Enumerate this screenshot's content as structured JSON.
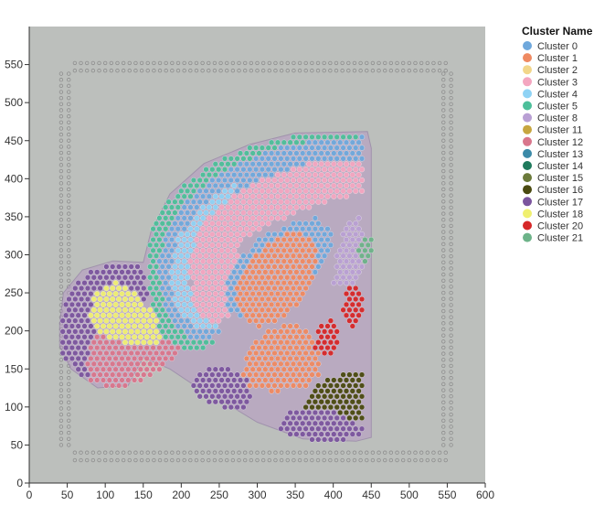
{
  "chart_data": {
    "type": "scatter",
    "title": "",
    "xlabel": "",
    "ylabel": "",
    "xlim": [
      0,
      600
    ],
    "ylim": [
      0,
      600
    ],
    "x_ticks": [
      0,
      50,
      100,
      150,
      200,
      250,
      300,
      350,
      400,
      450,
      500,
      550,
      600
    ],
    "y_ticks": [
      0,
      50,
      100,
      150,
      200,
      250,
      300,
      350,
      400,
      450,
      500,
      550
    ],
    "background_image": "tissue-section-histology",
    "grid": false,
    "legend": {
      "title": "Cluster Name",
      "placement": "top-right-outside",
      "entries": [
        {
          "name": "Cluster 0",
          "color": "#6fa8dc"
        },
        {
          "name": "Cluster 1",
          "color": "#ef8a62"
        },
        {
          "name": "Cluster 2",
          "color": "#f2d68a"
        },
        {
          "name": "Cluster 3",
          "color": "#f4a6c0"
        },
        {
          "name": "Cluster 4",
          "color": "#8fd3f5"
        },
        {
          "name": "Cluster 5",
          "color": "#4dbf9a"
        },
        {
          "name": "Cluster 8",
          "color": "#b9a0d4"
        },
        {
          "name": "Cluster 11",
          "color": "#c7a640"
        },
        {
          "name": "Cluster 12",
          "color": "#d9768c"
        },
        {
          "name": "Cluster 13",
          "color": "#3b8aa8"
        },
        {
          "name": "Cluster 14",
          "color": "#1f7a5c"
        },
        {
          "name": "Cluster 15",
          "color": "#6b7a3a"
        },
        {
          "name": "Cluster 16",
          "color": "#4a4a10"
        },
        {
          "name": "Cluster 17",
          "color": "#7b559e"
        },
        {
          "name": "Cluster 18",
          "color": "#f0f070"
        },
        {
          "name": "Cluster 20",
          "color": "#d62728"
        },
        {
          "name": "Cluster 21",
          "color": "#6db389"
        }
      ]
    },
    "regions": [
      {
        "cluster": "Cluster 17",
        "polygon": [
          [
            40,
            195
          ],
          [
            50,
            250
          ],
          [
            80,
            280
          ],
          [
            120,
            290
          ],
          [
            150,
            285
          ],
          [
            155,
            250
          ],
          [
            150,
            200
          ],
          [
            170,
            170
          ],
          [
            150,
            140
          ],
          [
            110,
            130
          ],
          [
            70,
            140
          ],
          [
            45,
            165
          ]
        ]
      },
      {
        "cluster": "Cluster 12",
        "polygon": [
          [
            75,
            150
          ],
          [
            80,
            190
          ],
          [
            110,
            200
          ],
          [
            150,
            210
          ],
          [
            190,
            200
          ],
          [
            200,
            175
          ],
          [
            175,
            150
          ],
          [
            140,
            130
          ],
          [
            105,
            125
          ],
          [
            80,
            135
          ]
        ]
      },
      {
        "cluster": "Cluster 18",
        "polygon": [
          [
            80,
            215
          ],
          [
            85,
            250
          ],
          [
            110,
            265
          ],
          [
            135,
            255
          ],
          [
            150,
            235
          ],
          [
            175,
            215
          ],
          [
            185,
            195
          ],
          [
            160,
            180
          ],
          [
            120,
            185
          ],
          [
            90,
            195
          ]
        ]
      },
      {
        "cluster": "Cluster 5",
        "polygon": [
          [
            155,
            300
          ],
          [
            165,
            350
          ],
          [
            200,
            390
          ],
          [
            250,
            425
          ],
          [
            300,
            445
          ],
          [
            345,
            455
          ],
          [
            380,
            458
          ],
          [
            420,
            462
          ],
          [
            440,
            460
          ],
          [
            440,
            440
          ],
          [
            405,
            440
          ],
          [
            370,
            430
          ],
          [
            320,
            415
          ],
          [
            270,
            390
          ],
          [
            225,
            355
          ],
          [
            195,
            315
          ],
          [
            185,
            265
          ],
          [
            195,
            225
          ],
          [
            215,
            200
          ],
          [
            245,
            190
          ],
          [
            230,
            170
          ],
          [
            200,
            175
          ],
          [
            175,
            195
          ],
          [
            160,
            235
          ],
          [
            155,
            270
          ]
        ]
      },
      {
        "cluster": "Cluster 0",
        "polygon": [
          [
            170,
            290
          ],
          [
            180,
            330
          ],
          [
            200,
            365
          ],
          [
            235,
            395
          ],
          [
            275,
            420
          ],
          [
            320,
            438
          ],
          [
            370,
            450
          ],
          [
            440,
            455
          ],
          [
            440,
            420
          ],
          [
            395,
            420
          ],
          [
            350,
            415
          ],
          [
            300,
            395
          ],
          [
            255,
            365
          ],
          [
            220,
            330
          ],
          [
            205,
            290
          ],
          [
            205,
            250
          ],
          [
            220,
            215
          ],
          [
            250,
            200
          ],
          [
            240,
            185
          ],
          [
            210,
            190
          ],
          [
            185,
            215
          ],
          [
            172,
            255
          ]
        ]
      },
      {
        "cluster": "Cluster 4",
        "polygon": [
          [
            185,
            280
          ],
          [
            195,
            320
          ],
          [
            215,
            350
          ],
          [
            245,
            380
          ],
          [
            275,
            395
          ],
          [
            265,
            365
          ],
          [
            235,
            335
          ],
          [
            215,
            300
          ],
          [
            210,
            260
          ],
          [
            225,
            225
          ],
          [
            250,
            205
          ],
          [
            225,
            200
          ],
          [
            200,
            220
          ],
          [
            188,
            250
          ]
        ]
      },
      {
        "cluster": "Cluster 3",
        "polygon": [
          [
            210,
            285
          ],
          [
            220,
            325
          ],
          [
            245,
            360
          ],
          [
            280,
            385
          ],
          [
            320,
            405
          ],
          [
            370,
            420
          ],
          [
            440,
            420
          ],
          [
            440,
            380
          ],
          [
            395,
            370
          ],
          [
            350,
            355
          ],
          [
            310,
            335
          ],
          [
            280,
            320
          ],
          [
            270,
            285
          ],
          [
            290,
            265
          ],
          [
            275,
            250
          ],
          [
            260,
            215
          ],
          [
            235,
            210
          ],
          [
            215,
            240
          ]
        ]
      },
      {
        "cluster": "Cluster 0",
        "polygon": [
          [
            255,
            250
          ],
          [
            270,
            285
          ],
          [
            300,
            320
          ],
          [
            340,
            340
          ],
          [
            375,
            350
          ],
          [
            400,
            330
          ],
          [
            395,
            300
          ],
          [
            380,
            270
          ],
          [
            350,
            240
          ],
          [
            320,
            220
          ],
          [
            290,
            215
          ],
          [
            265,
            225
          ]
        ]
      },
      {
        "cluster": "Cluster 1",
        "polygon": [
          [
            270,
            250
          ],
          [
            285,
            290
          ],
          [
            320,
            320
          ],
          [
            355,
            335
          ],
          [
            380,
            310
          ],
          [
            375,
            270
          ],
          [
            360,
            240
          ],
          [
            330,
            215
          ],
          [
            300,
            205
          ],
          [
            280,
            215
          ]
        ]
      },
      {
        "cluster": "Cluster 1",
        "polygon": [
          [
            280,
            130
          ],
          [
            285,
            170
          ],
          [
            310,
            200
          ],
          [
            345,
            210
          ],
          [
            370,
            200
          ],
          [
            385,
            170
          ],
          [
            380,
            140
          ],
          [
            360,
            125
          ],
          [
            325,
            120
          ],
          [
            300,
            122
          ]
        ]
      },
      {
        "cluster": "Cluster 8",
        "polygon": [
          [
            400,
            260
          ],
          [
            405,
            300
          ],
          [
            415,
            340
          ],
          [
            435,
            355
          ],
          [
            440,
            320
          ],
          [
            440,
            280
          ],
          [
            430,
            260
          ]
        ]
      },
      {
        "cluster": "Cluster 20",
        "polygon": [
          [
            410,
            220
          ],
          [
            415,
            250
          ],
          [
            430,
            265
          ],
          [
            440,
            250
          ],
          [
            440,
            215
          ],
          [
            425,
            205
          ]
        ]
      },
      {
        "cluster": "Cluster 20",
        "polygon": [
          [
            375,
            175
          ],
          [
            380,
            205
          ],
          [
            400,
            220
          ],
          [
            410,
            200
          ],
          [
            405,
            175
          ],
          [
            390,
            165
          ]
        ]
      },
      {
        "cluster": "Cluster 16",
        "polygon": [
          [
            355,
            80
          ],
          [
            365,
            110
          ],
          [
            385,
            135
          ],
          [
            420,
            145
          ],
          [
            440,
            150
          ],
          [
            440,
            85
          ],
          [
            420,
            75
          ],
          [
            390,
            72
          ]
        ]
      },
      {
        "cluster": "Cluster 17",
        "polygon": [
          [
            210,
            130
          ],
          [
            230,
            150
          ],
          [
            260,
            150
          ],
          [
            285,
            140
          ],
          [
            295,
            115
          ],
          [
            280,
            95
          ],
          [
            250,
            100
          ],
          [
            225,
            110
          ]
        ]
      },
      {
        "cluster": "Cluster 17",
        "polygon": [
          [
            325,
            70
          ],
          [
            340,
            95
          ],
          [
            370,
            100
          ],
          [
            400,
            95
          ],
          [
            440,
            75
          ],
          [
            440,
            60
          ],
          [
            400,
            55
          ],
          [
            360,
            58
          ]
        ]
      },
      {
        "cluster": "Cluster 21",
        "polygon": [
          [
            430,
            300
          ],
          [
            440,
            320
          ],
          [
            450,
            330
          ],
          [
            460,
            315
          ],
          [
            455,
            295
          ],
          [
            442,
            288
          ]
        ]
      }
    ]
  }
}
